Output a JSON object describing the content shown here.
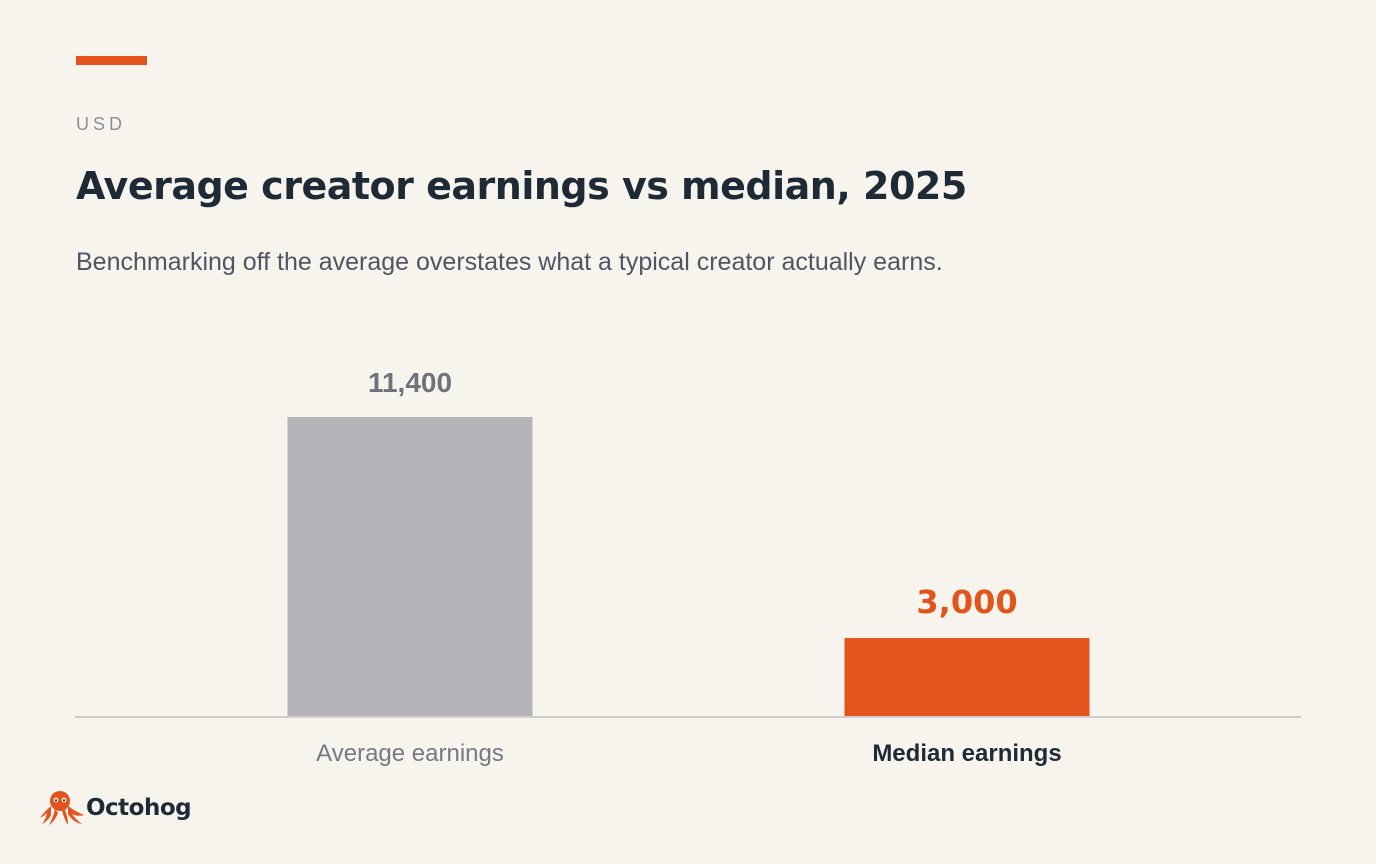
{
  "header": {
    "eyebrow": "USD",
    "title": "Average creator earnings vs median, 2025",
    "subtitle": "Benchmarking off the average overstates what a typical creator actually earns."
  },
  "colors": {
    "accent": "#e2541c",
    "neutral_bar": "#b4b5b8",
    "neutral_label": "#6e737b",
    "axis": "#d0ccc6",
    "text_dark": "#1f2a37",
    "text_muted": "#747a83"
  },
  "chart_data": {
    "type": "bar",
    "categories": [
      "Average earnings",
      "Median earnings"
    ],
    "values": [
      11400,
      3000
    ],
    "value_labels": [
      "11,400",
      "3,000"
    ],
    "highlight_index": 1,
    "ylim": [
      0,
      11400
    ],
    "ylabel": "",
    "xlabel": "",
    "grid": false
  },
  "brand": {
    "name": "Octohog",
    "logo_icon": "octopus-icon"
  }
}
